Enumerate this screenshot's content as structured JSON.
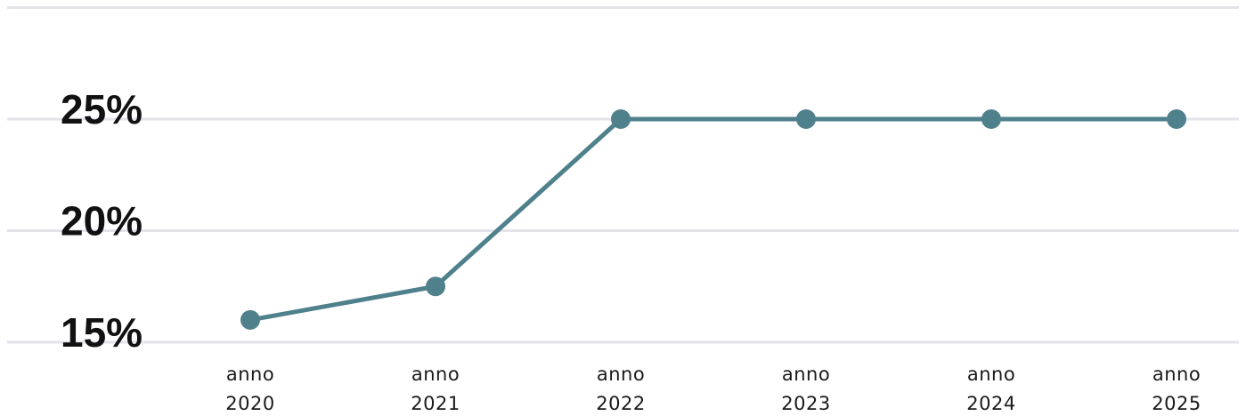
{
  "chart_data": {
    "type": "line",
    "title": "",
    "xlabel": "",
    "ylabel": "",
    "x": [
      "anno 2020",
      "anno 2021",
      "anno 2022",
      "anno 2023",
      "anno 2024",
      "anno 2025"
    ],
    "x_tick_lines": [
      [
        "anno",
        "2020"
      ],
      [
        "anno",
        "2021"
      ],
      [
        "anno",
        "2022"
      ],
      [
        "anno",
        "2023"
      ],
      [
        "anno",
        "2024"
      ],
      [
        "anno",
        "2025"
      ]
    ],
    "series": [
      {
        "values": [
          16,
          17.5,
          25,
          25,
          25,
          25
        ],
        "color": "#4f818c"
      }
    ],
    "y_ticks": [
      15,
      20,
      25
    ],
    "y_tick_labels": [
      "15%",
      "20%",
      "25%"
    ],
    "ylim": [
      15,
      30
    ],
    "grid": true,
    "legend": "none",
    "gridline_color": "#e3e3ea"
  }
}
